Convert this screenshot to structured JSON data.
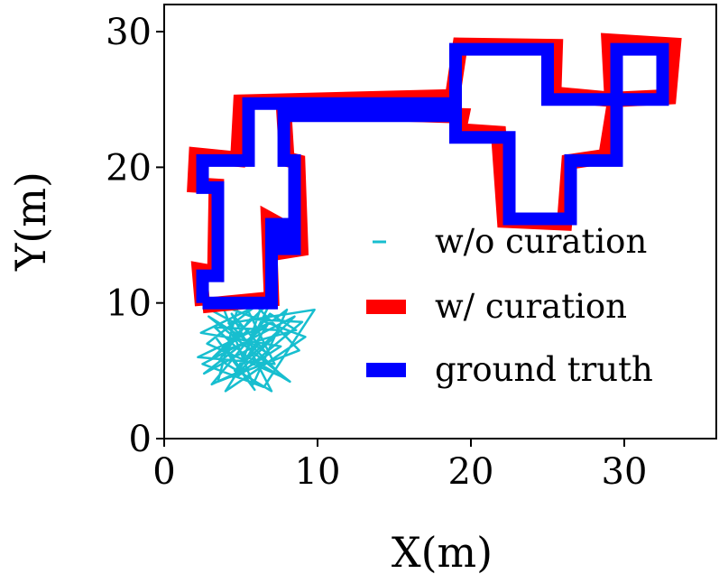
{
  "chart_data": {
    "type": "line",
    "xlabel": "X(m)",
    "ylabel": "Y(m)",
    "xlim": [
      0,
      36
    ],
    "ylim": [
      0,
      32
    ],
    "xticks": [
      0,
      10,
      20,
      30
    ],
    "yticks": [
      0,
      10,
      20,
      30
    ],
    "grid": false,
    "legend_position": "center-right",
    "series": [
      {
        "name": "w/o curation",
        "color": "#17becf",
        "points": [
          [
            3.0,
            9.5
          ],
          [
            5.5,
            8.0
          ],
          [
            3.2,
            6.0
          ],
          [
            7.0,
            10.2
          ],
          [
            4.5,
            4.5
          ],
          [
            8.5,
            9.0
          ],
          [
            2.5,
            5.5
          ],
          [
            6.5,
            3.8
          ],
          [
            9.8,
            9.5
          ],
          [
            4.2,
            8.5
          ],
          [
            7.8,
            4.5
          ],
          [
            2.8,
            7.0
          ],
          [
            6.0,
            9.8
          ],
          [
            8.8,
            6.5
          ],
          [
            3.5,
            4.2
          ],
          [
            5.0,
            10.5
          ],
          [
            7.2,
            5.5
          ],
          [
            2.2,
            6.0
          ],
          [
            6.8,
            8.5
          ],
          [
            4.0,
            3.5
          ],
          [
            9.2,
            7.5
          ],
          [
            3.8,
            9.8
          ],
          [
            5.8,
            4.0
          ],
          [
            8.0,
            9.5
          ],
          [
            2.6,
            4.8
          ],
          [
            6.2,
            7.0
          ],
          [
            4.6,
            5.0
          ],
          [
            7.5,
            8.0
          ],
          [
            3.3,
            8.2
          ],
          [
            5.2,
            6.2
          ],
          [
            8.2,
            4.2
          ],
          [
            2.9,
            9.0
          ],
          [
            6.6,
            6.4
          ],
          [
            4.4,
            9.2
          ],
          [
            7.0,
            3.5
          ],
          [
            3.6,
            5.8
          ],
          [
            5.6,
            8.8
          ],
          [
            9.0,
            8.6
          ],
          [
            4.8,
            4.6
          ],
          [
            6.4,
            10.0
          ],
          [
            2.4,
            7.8
          ],
          [
            7.6,
            6.8
          ],
          [
            5.4,
            5.2
          ],
          [
            3.1,
            4.0
          ],
          [
            6.9,
            9.2
          ],
          [
            8.6,
            8.0
          ],
          [
            4.1,
            6.6
          ],
          [
            5.9,
            3.6
          ],
          [
            3.4,
            7.4
          ]
        ]
      },
      {
        "name": "w/ curation",
        "color": "#ff0000",
        "points": [
          [
            2.5,
            9.8
          ],
          [
            2.3,
            12.4
          ],
          [
            3.3,
            12.2
          ],
          [
            3.4,
            18.6
          ],
          [
            2.0,
            18.7
          ],
          [
            2.1,
            20.9
          ],
          [
            4.8,
            20.6
          ],
          [
            5.0,
            24.8
          ],
          [
            18.8,
            25.2
          ],
          [
            19.3,
            29.0
          ],
          [
            25.5,
            28.9
          ],
          [
            25.4,
            25.4
          ],
          [
            29.2,
            25.0
          ],
          [
            29.0,
            29.3
          ],
          [
            33.2,
            29.0
          ],
          [
            32.9,
            25.2
          ],
          [
            29.4,
            25.0
          ],
          [
            28.8,
            20.8
          ],
          [
            26.4,
            20.4
          ],
          [
            26.1,
            15.9
          ],
          [
            22.2,
            16.1
          ],
          [
            21.8,
            22.5
          ],
          [
            19.2,
            22.7
          ],
          [
            19.4,
            23.8
          ],
          [
            7.8,
            24.2
          ],
          [
            8.0,
            20.6
          ],
          [
            8.7,
            20.4
          ],
          [
            8.9,
            14.0
          ],
          [
            7.8,
            13.8
          ],
          [
            7.6,
            15.7
          ],
          [
            6.8,
            16.2
          ],
          [
            7.0,
            10.3
          ],
          [
            2.5,
            9.8
          ]
        ]
      },
      {
        "name": "ground truth",
        "color": "#0000ff",
        "points": [
          [
            2.5,
            10.0
          ],
          [
            2.5,
            12.0
          ],
          [
            3.5,
            12.0
          ],
          [
            3.5,
            18.5
          ],
          [
            2.5,
            18.5
          ],
          [
            2.5,
            20.5
          ],
          [
            5.5,
            20.5
          ],
          [
            5.5,
            24.7
          ],
          [
            19.0,
            24.7
          ],
          [
            19.0,
            28.7
          ],
          [
            25.0,
            28.7
          ],
          [
            25.0,
            25.0
          ],
          [
            29.5,
            25.0
          ],
          [
            29.5,
            28.7
          ],
          [
            32.5,
            28.7
          ],
          [
            32.5,
            25.0
          ],
          [
            29.5,
            25.0
          ],
          [
            29.5,
            20.5
          ],
          [
            26.5,
            20.5
          ],
          [
            26.5,
            16.2
          ],
          [
            22.5,
            16.2
          ],
          [
            22.5,
            22.2
          ],
          [
            19.0,
            22.2
          ],
          [
            19.0,
            23.8
          ],
          [
            7.8,
            23.8
          ],
          [
            7.8,
            20.5
          ],
          [
            8.5,
            20.5
          ],
          [
            8.5,
            14.0
          ],
          [
            7.8,
            14.0
          ],
          [
            7.8,
            15.8
          ],
          [
            7.0,
            15.8
          ],
          [
            7.0,
            10.0
          ],
          [
            2.5,
            10.0
          ]
        ]
      }
    ]
  }
}
